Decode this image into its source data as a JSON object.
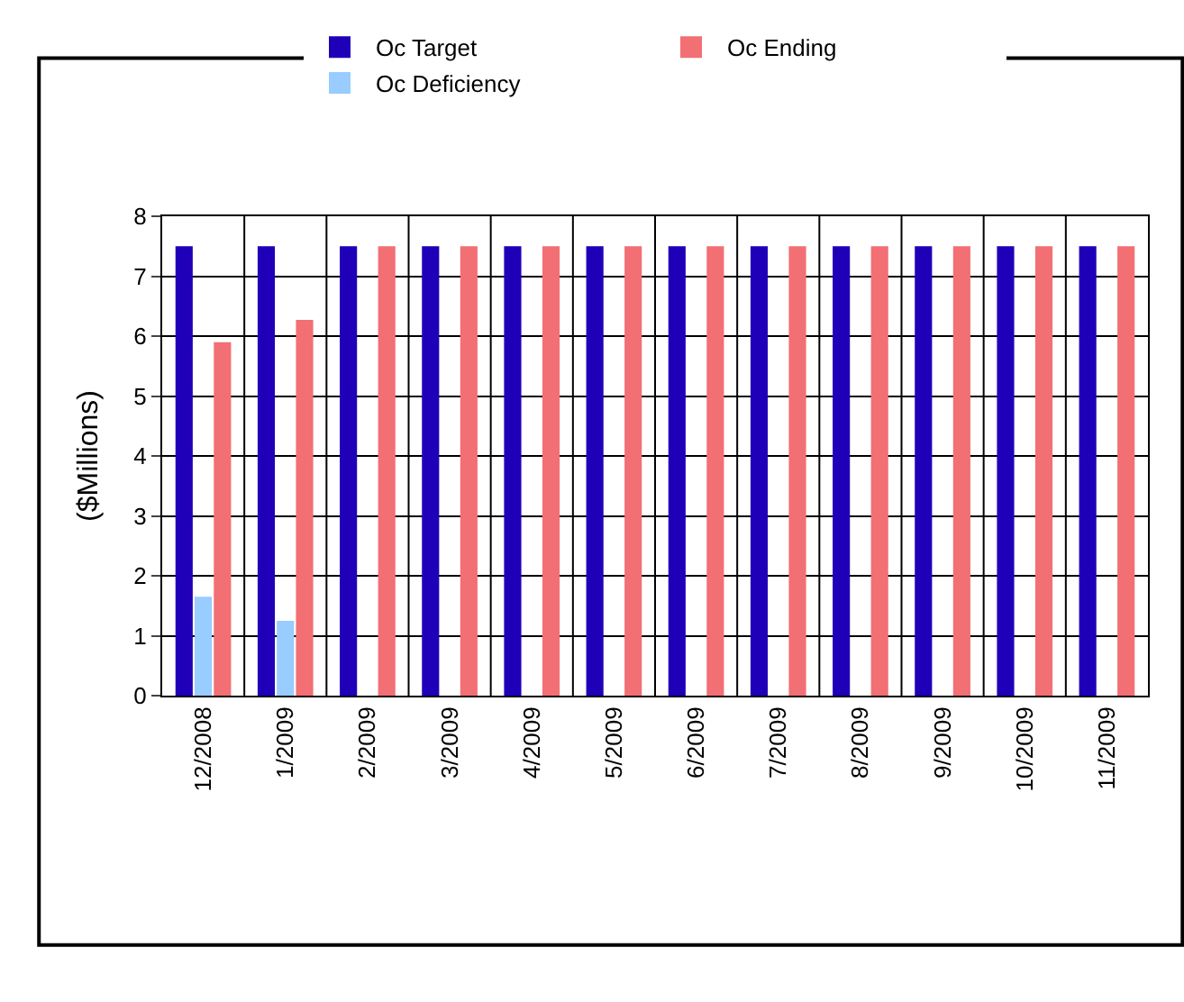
{
  "chart_data": {
    "type": "bar",
    "ylabel": "($Millions)",
    "categories": [
      "12/2008",
      "1/2009",
      "2/2009",
      "3/2009",
      "4/2009",
      "5/2009",
      "6/2009",
      "7/2009",
      "8/2009",
      "9/2009",
      "10/2009",
      "11/2009"
    ],
    "series": [
      {
        "name": "Oc Target",
        "color": "#1f00b8",
        "values": [
          7.5,
          7.5,
          7.5,
          7.5,
          7.5,
          7.5,
          7.5,
          7.5,
          7.5,
          7.5,
          7.5,
          7.5
        ]
      },
      {
        "name": "Oc Deficiency",
        "color": "#99ccff",
        "values": [
          1.65,
          1.25,
          0,
          0,
          0,
          0,
          0,
          0,
          0,
          0,
          0,
          0
        ]
      },
      {
        "name": "Oc Ending",
        "color": "#f26f74",
        "values": [
          5.9,
          6.27,
          7.5,
          7.5,
          7.5,
          7.5,
          7.5,
          7.5,
          7.5,
          7.5,
          7.5,
          7.5
        ]
      }
    ],
    "ylim": [
      0,
      8
    ],
    "yticks": [
      0,
      1,
      2,
      3,
      4,
      5,
      6,
      7,
      8
    ],
    "grid": true,
    "legend": "top"
  }
}
